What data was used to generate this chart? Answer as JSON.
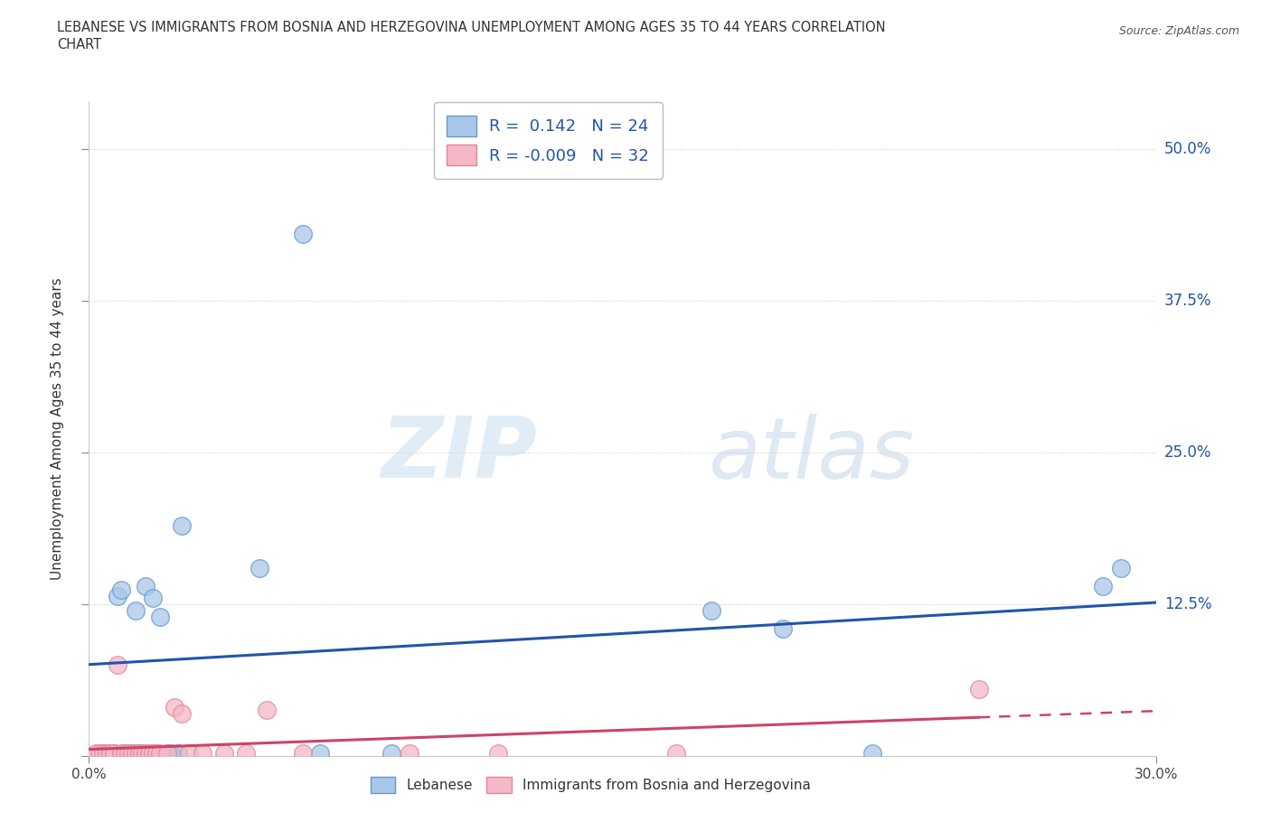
{
  "title_line1": "LEBANESE VS IMMIGRANTS FROM BOSNIA AND HERZEGOVINA UNEMPLOYMENT AMONG AGES 35 TO 44 YEARS CORRELATION",
  "title_line2": "CHART",
  "source": "Source: ZipAtlas.com",
  "ylabel": "Unemployment Among Ages 35 to 44 years",
  "xlim": [
    0.0,
    0.3
  ],
  "ylim": [
    0.0,
    0.54
  ],
  "yticks": [
    0.0,
    0.125,
    0.25,
    0.375,
    0.5
  ],
  "ytick_labels": [
    "",
    "12.5%",
    "25.0%",
    "37.5%",
    "50.0%"
  ],
  "xticks": [
    0.0,
    0.3
  ],
  "xtick_labels": [
    "0.0%",
    "30.0%"
  ],
  "background_color": "#ffffff",
  "watermark_zip": "ZIP",
  "watermark_atlas": "atlas",
  "blue_color": "#a8c8e8",
  "blue_edge_color": "#6699cc",
  "pink_color": "#f4b8c8",
  "pink_edge_color": "#dd8899",
  "blue_line_color": "#2255aa",
  "pink_line_color": "#cc4466",
  "grid_color": "#cccccc",
  "R_blue": 0.142,
  "N_blue": 24,
  "R_pink": -0.009,
  "N_pink": 32,
  "legend_label_blue": "Lebanese",
  "legend_label_pink": "Immigrants from Bosnia and Herzegovina",
  "blue_x": [
    0.004,
    0.007,
    0.008,
    0.009,
    0.01,
    0.012,
    0.013,
    0.014,
    0.016,
    0.018,
    0.02,
    0.022,
    0.023,
    0.025,
    0.026,
    0.048,
    0.06,
    0.065,
    0.085,
    0.175,
    0.195,
    0.22,
    0.285,
    0.29
  ],
  "blue_y": [
    0.002,
    0.002,
    0.132,
    0.137,
    0.002,
    0.002,
    0.12,
    0.002,
    0.14,
    0.13,
    0.115,
    0.002,
    0.002,
    0.002,
    0.19,
    0.155,
    0.43,
    0.002,
    0.002,
    0.12,
    0.105,
    0.002,
    0.14,
    0.155
  ],
  "pink_x": [
    0.002,
    0.003,
    0.004,
    0.005,
    0.006,
    0.007,
    0.008,
    0.009,
    0.01,
    0.011,
    0.012,
    0.013,
    0.014,
    0.015,
    0.016,
    0.017,
    0.018,
    0.019,
    0.02,
    0.022,
    0.024,
    0.026,
    0.028,
    0.032,
    0.038,
    0.044,
    0.05,
    0.06,
    0.09,
    0.115,
    0.165,
    0.25
  ],
  "pink_y": [
    0.002,
    0.002,
    0.002,
    0.002,
    0.002,
    0.002,
    0.075,
    0.002,
    0.002,
    0.002,
    0.002,
    0.002,
    0.002,
    0.002,
    0.002,
    0.002,
    0.002,
    0.002,
    0.002,
    0.002,
    0.04,
    0.035,
    0.002,
    0.002,
    0.002,
    0.002,
    0.038,
    0.002,
    0.002,
    0.002,
    0.002,
    0.055
  ]
}
